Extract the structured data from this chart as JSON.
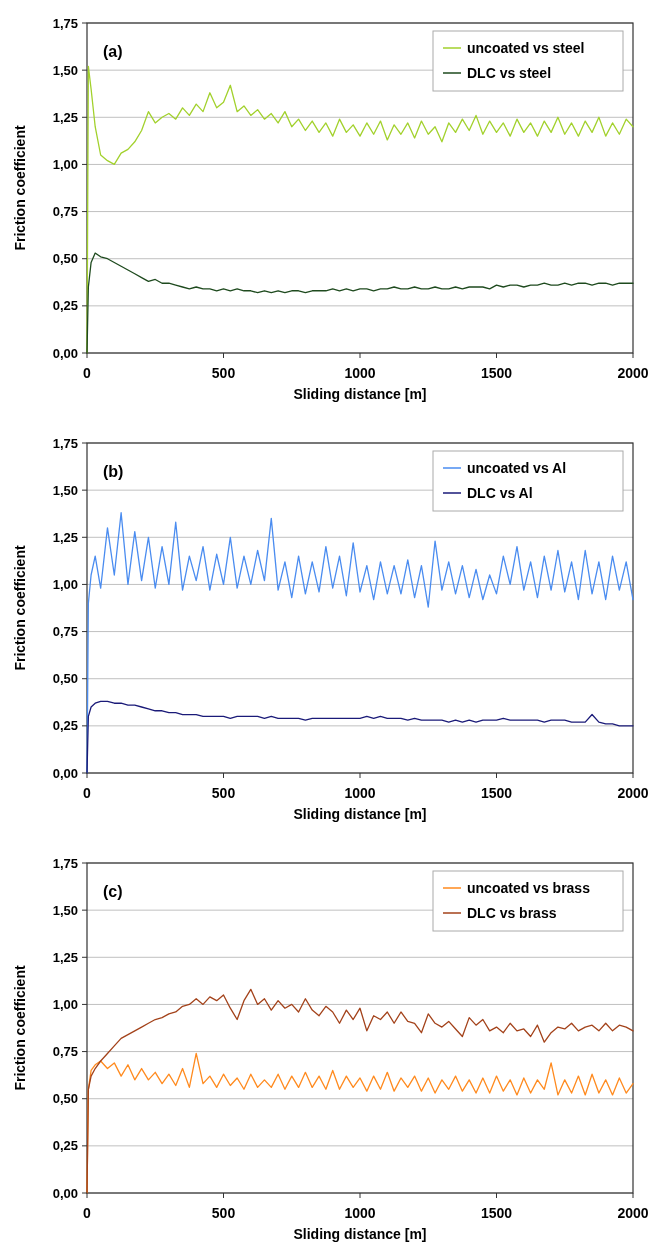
{
  "chart_data": [
    {
      "type": "line",
      "xlabel": "Sliding distance [m]",
      "ylabel": "Friction coefficient",
      "annotations": [
        "(a)"
      ],
      "grid": "y",
      "legend": "top right",
      "xlim": [
        0,
        2000
      ],
      "xticks": [
        0,
        500,
        1000,
        1500,
        2000
      ],
      "ylim": [
        0,
        1.75
      ],
      "yticks": [
        {
          "value": 0,
          "label": "0,00"
        },
        {
          "value": 0.25,
          "label": "0,25"
        },
        {
          "value": 0.5,
          "label": "0,50"
        },
        {
          "value": 0.75,
          "label": "0,75"
        },
        {
          "value": 1,
          "label": "1,00"
        },
        {
          "value": 1.25,
          "label": "1,25"
        },
        {
          "value": 1.5,
          "label": "1,50"
        },
        {
          "value": 1.75,
          "label": "1,75"
        }
      ],
      "x": [
        0,
        5,
        15,
        30,
        50,
        75,
        100,
        125,
        150,
        175,
        200,
        225,
        250,
        275,
        300,
        325,
        350,
        375,
        400,
        425,
        450,
        475,
        500,
        525,
        550,
        575,
        600,
        625,
        650,
        675,
        700,
        725,
        750,
        775,
        800,
        825,
        850,
        875,
        900,
        925,
        950,
        975,
        1000,
        1025,
        1050,
        1075,
        1100,
        1125,
        1150,
        1175,
        1200,
        1225,
        1250,
        1275,
        1300,
        1325,
        1350,
        1375,
        1400,
        1425,
        1450,
        1475,
        1500,
        1525,
        1550,
        1575,
        1600,
        1625,
        1650,
        1675,
        1700,
        1725,
        1750,
        1775,
        1800,
        1825,
        1850,
        1875,
        1900,
        1925,
        1950,
        1975,
        2000
      ],
      "series": [
        {
          "name": "uncoated vs steel",
          "color": "#a2d12c",
          "values": [
            0,
            1.52,
            1.4,
            1.2,
            1.05,
            1.02,
            1.0,
            1.06,
            1.08,
            1.12,
            1.18,
            1.28,
            1.22,
            1.25,
            1.27,
            1.24,
            1.3,
            1.26,
            1.32,
            1.28,
            1.38,
            1.3,
            1.33,
            1.42,
            1.28,
            1.31,
            1.26,
            1.29,
            1.24,
            1.27,
            1.22,
            1.28,
            1.2,
            1.24,
            1.18,
            1.23,
            1.17,
            1.22,
            1.15,
            1.24,
            1.17,
            1.21,
            1.15,
            1.22,
            1.16,
            1.23,
            1.13,
            1.21,
            1.16,
            1.22,
            1.14,
            1.23,
            1.16,
            1.2,
            1.12,
            1.22,
            1.17,
            1.24,
            1.18,
            1.26,
            1.16,
            1.23,
            1.17,
            1.22,
            1.15,
            1.24,
            1.17,
            1.22,
            1.15,
            1.23,
            1.17,
            1.25,
            1.16,
            1.22,
            1.15,
            1.23,
            1.17,
            1.25,
            1.15,
            1.22,
            1.16,
            1.24,
            1.2
          ]
        },
        {
          "name": "DLC vs steel",
          "color": "#1e4a1e",
          "values": [
            0,
            0.35,
            0.48,
            0.53,
            0.51,
            0.5,
            0.48,
            0.46,
            0.44,
            0.42,
            0.4,
            0.38,
            0.39,
            0.37,
            0.37,
            0.36,
            0.35,
            0.34,
            0.35,
            0.34,
            0.34,
            0.33,
            0.34,
            0.33,
            0.34,
            0.33,
            0.33,
            0.32,
            0.33,
            0.32,
            0.33,
            0.32,
            0.33,
            0.33,
            0.32,
            0.33,
            0.33,
            0.33,
            0.34,
            0.33,
            0.34,
            0.33,
            0.34,
            0.34,
            0.33,
            0.34,
            0.34,
            0.35,
            0.34,
            0.34,
            0.35,
            0.34,
            0.34,
            0.35,
            0.34,
            0.34,
            0.35,
            0.34,
            0.35,
            0.35,
            0.35,
            0.34,
            0.36,
            0.35,
            0.36,
            0.36,
            0.35,
            0.36,
            0.36,
            0.37,
            0.36,
            0.36,
            0.37,
            0.36,
            0.37,
            0.37,
            0.36,
            0.37,
            0.37,
            0.36,
            0.37,
            0.37,
            0.37
          ]
        }
      ]
    },
    {
      "type": "line",
      "xlabel": "Sliding distance [m]",
      "ylabel": "Friction coefficient",
      "annotations": [
        "(b)"
      ],
      "grid": "y",
      "legend": "top right",
      "xlim": [
        0,
        2000
      ],
      "xticks": [
        0,
        500,
        1000,
        1500,
        2000
      ],
      "ylim": [
        0,
        1.75
      ],
      "yticks": [
        {
          "value": 0,
          "label": "0,00"
        },
        {
          "value": 0.25,
          "label": "0,25"
        },
        {
          "value": 0.5,
          "label": "0,50"
        },
        {
          "value": 0.75,
          "label": "0,75"
        },
        {
          "value": 1,
          "label": "1,00"
        },
        {
          "value": 1.25,
          "label": "1,25"
        },
        {
          "value": 1.5,
          "label": "1,50"
        },
        {
          "value": 1.75,
          "label": "1,75"
        }
      ],
      "x": [
        0,
        5,
        15,
        30,
        50,
        75,
        100,
        125,
        150,
        175,
        200,
        225,
        250,
        275,
        300,
        325,
        350,
        375,
        400,
        425,
        450,
        475,
        500,
        525,
        550,
        575,
        600,
        625,
        650,
        675,
        700,
        725,
        750,
        775,
        800,
        825,
        850,
        875,
        900,
        925,
        950,
        975,
        1000,
        1025,
        1050,
        1075,
        1100,
        1125,
        1150,
        1175,
        1200,
        1225,
        1250,
        1275,
        1300,
        1325,
        1350,
        1375,
        1400,
        1425,
        1450,
        1475,
        1500,
        1525,
        1550,
        1575,
        1600,
        1625,
        1650,
        1675,
        1700,
        1725,
        1750,
        1775,
        1800,
        1825,
        1850,
        1875,
        1900,
        1925,
        1950,
        1975,
        2000
      ],
      "series": [
        {
          "name": "uncoated vs Al",
          "color": "#4a8cf0",
          "values": [
            0,
            0.9,
            1.05,
            1.15,
            0.98,
            1.3,
            1.05,
            1.38,
            1.0,
            1.28,
            1.02,
            1.25,
            0.98,
            1.2,
            1.0,
            1.33,
            0.97,
            1.15,
            1.02,
            1.2,
            0.97,
            1.16,
            1.0,
            1.25,
            0.98,
            1.15,
            1.0,
            1.18,
            1.02,
            1.35,
            0.97,
            1.12,
            0.93,
            1.15,
            0.95,
            1.12,
            0.96,
            1.2,
            0.98,
            1.15,
            0.94,
            1.22,
            0.96,
            1.1,
            0.92,
            1.12,
            0.95,
            1.1,
            0.95,
            1.13,
            0.93,
            1.1,
            0.88,
            1.23,
            0.97,
            1.12,
            0.95,
            1.1,
            0.93,
            1.08,
            0.92,
            1.05,
            0.95,
            1.15,
            1.0,
            1.2,
            0.97,
            1.12,
            0.93,
            1.15,
            0.97,
            1.18,
            0.96,
            1.12,
            0.92,
            1.18,
            0.95,
            1.12,
            0.92,
            1.15,
            0.97,
            1.12,
            0.92
          ]
        },
        {
          "name": "DLC vs Al",
          "color": "#1a1a78",
          "values": [
            0,
            0.3,
            0.35,
            0.37,
            0.38,
            0.38,
            0.37,
            0.37,
            0.36,
            0.36,
            0.35,
            0.34,
            0.33,
            0.33,
            0.32,
            0.32,
            0.31,
            0.31,
            0.31,
            0.3,
            0.3,
            0.3,
            0.3,
            0.29,
            0.3,
            0.3,
            0.3,
            0.3,
            0.29,
            0.3,
            0.29,
            0.29,
            0.29,
            0.29,
            0.28,
            0.29,
            0.29,
            0.29,
            0.29,
            0.29,
            0.29,
            0.29,
            0.29,
            0.3,
            0.29,
            0.3,
            0.29,
            0.29,
            0.29,
            0.28,
            0.29,
            0.28,
            0.28,
            0.28,
            0.28,
            0.27,
            0.28,
            0.27,
            0.28,
            0.27,
            0.28,
            0.28,
            0.28,
            0.29,
            0.28,
            0.28,
            0.28,
            0.28,
            0.28,
            0.27,
            0.28,
            0.28,
            0.28,
            0.27,
            0.27,
            0.27,
            0.31,
            0.27,
            0.26,
            0.26,
            0.25,
            0.25,
            0.25
          ]
        }
      ]
    },
    {
      "type": "line",
      "xlabel": "Sliding distance [m]",
      "ylabel": "Friction coefficient",
      "annotations": [
        "(c)"
      ],
      "grid": "y",
      "legend": "top right",
      "xlim": [
        0,
        2000
      ],
      "xticks": [
        0,
        500,
        1000,
        1500,
        2000
      ],
      "ylim": [
        0,
        1.75
      ],
      "yticks": [
        {
          "value": 0,
          "label": "0,00"
        },
        {
          "value": 0.25,
          "label": "0,25"
        },
        {
          "value": 0.5,
          "label": "0,50"
        },
        {
          "value": 0.75,
          "label": "0,75"
        },
        {
          "value": 1,
          "label": "1,00"
        },
        {
          "value": 1.25,
          "label": "1,25"
        },
        {
          "value": 1.5,
          "label": "1,50"
        },
        {
          "value": 1.75,
          "label": "1,75"
        }
      ],
      "x": [
        0,
        5,
        15,
        30,
        50,
        75,
        100,
        125,
        150,
        175,
        200,
        225,
        250,
        275,
        300,
        325,
        350,
        375,
        400,
        425,
        450,
        475,
        500,
        525,
        550,
        575,
        600,
        625,
        650,
        675,
        700,
        725,
        750,
        775,
        800,
        825,
        850,
        875,
        900,
        925,
        950,
        975,
        1000,
        1025,
        1050,
        1075,
        1100,
        1125,
        1150,
        1175,
        1200,
        1225,
        1250,
        1275,
        1300,
        1325,
        1350,
        1375,
        1400,
        1425,
        1450,
        1475,
        1500,
        1525,
        1550,
        1575,
        1600,
        1625,
        1650,
        1675,
        1700,
        1725,
        1750,
        1775,
        1800,
        1825,
        1850,
        1875,
        1900,
        1925,
        1950,
        1975,
        2000
      ],
      "series": [
        {
          "name": "uncoated vs brass",
          "color": "#ff8a1e",
          "values": [
            0,
            0.55,
            0.65,
            0.68,
            0.7,
            0.66,
            0.69,
            0.62,
            0.68,
            0.6,
            0.66,
            0.6,
            0.64,
            0.58,
            0.63,
            0.57,
            0.66,
            0.56,
            0.74,
            0.58,
            0.62,
            0.56,
            0.63,
            0.57,
            0.61,
            0.55,
            0.63,
            0.56,
            0.6,
            0.56,
            0.63,
            0.55,
            0.62,
            0.56,
            0.64,
            0.56,
            0.62,
            0.55,
            0.65,
            0.55,
            0.62,
            0.56,
            0.61,
            0.54,
            0.62,
            0.55,
            0.64,
            0.54,
            0.61,
            0.56,
            0.62,
            0.54,
            0.61,
            0.53,
            0.6,
            0.55,
            0.62,
            0.54,
            0.6,
            0.53,
            0.61,
            0.53,
            0.62,
            0.54,
            0.6,
            0.52,
            0.61,
            0.53,
            0.6,
            0.55,
            0.69,
            0.52,
            0.6,
            0.53,
            0.62,
            0.52,
            0.63,
            0.53,
            0.6,
            0.52,
            0.61,
            0.53,
            0.58
          ]
        },
        {
          "name": "DLC vs brass",
          "color": "#a3421a",
          "values": [
            0,
            0.55,
            0.62,
            0.66,
            0.7,
            0.74,
            0.78,
            0.82,
            0.84,
            0.86,
            0.88,
            0.9,
            0.92,
            0.93,
            0.95,
            0.96,
            0.99,
            1.0,
            1.03,
            1.0,
            1.04,
            1.02,
            1.05,
            0.98,
            0.92,
            1.02,
            1.08,
            1.0,
            1.03,
            0.97,
            1.02,
            0.98,
            1.0,
            0.96,
            1.03,
            0.97,
            0.94,
            0.99,
            0.96,
            0.9,
            0.97,
            0.92,
            0.98,
            0.86,
            0.94,
            0.92,
            0.96,
            0.9,
            0.96,
            0.91,
            0.9,
            0.85,
            0.95,
            0.9,
            0.88,
            0.91,
            0.87,
            0.83,
            0.93,
            0.89,
            0.92,
            0.86,
            0.88,
            0.85,
            0.9,
            0.86,
            0.87,
            0.83,
            0.89,
            0.8,
            0.85,
            0.88,
            0.87,
            0.9,
            0.86,
            0.88,
            0.89,
            0.86,
            0.9,
            0.86,
            0.89,
            0.88,
            0.86
          ]
        }
      ]
    }
  ]
}
